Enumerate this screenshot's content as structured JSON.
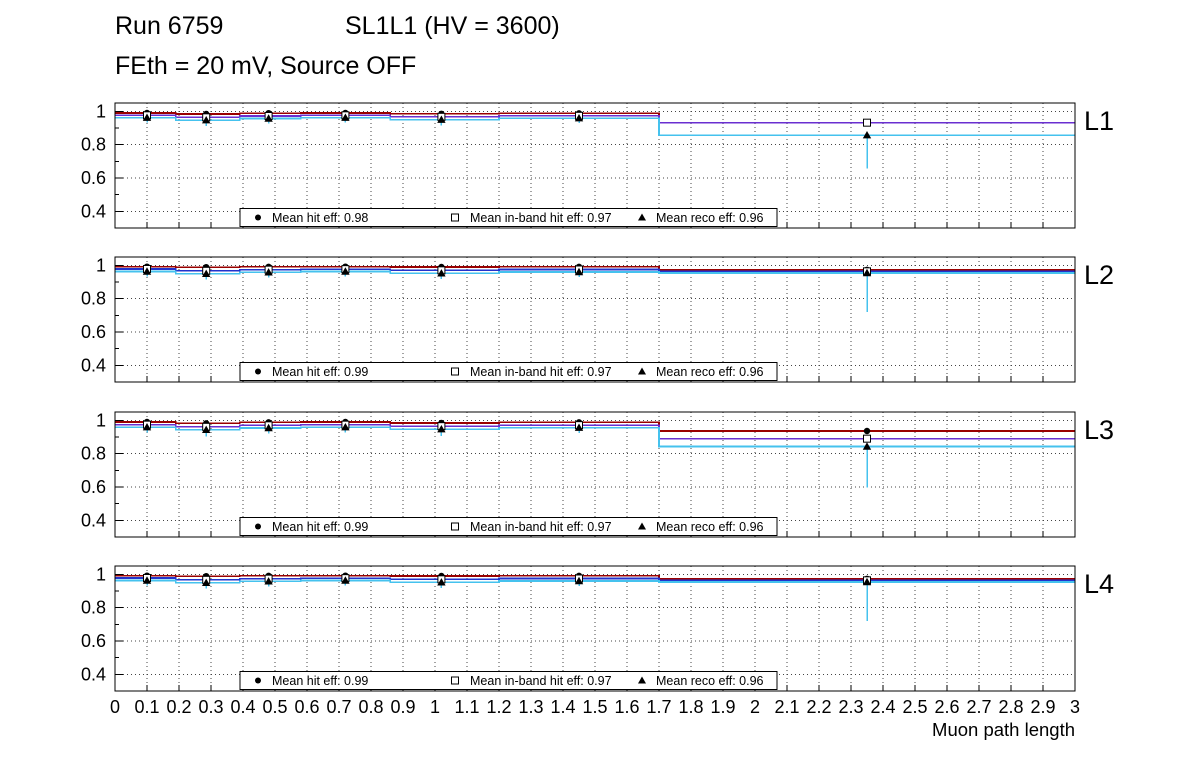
{
  "header": {
    "run": "Run 6759",
    "chamber": "SL1L1 (HV = 3600)",
    "conditions": "FEth = 20 mV, Source OFF"
  },
  "chart_data": {
    "type": "line",
    "xlabel": "Muon path length",
    "xlim": [
      0,
      3
    ],
    "ylim": [
      0.3,
      1.05
    ],
    "grid": true,
    "grid_color": "#444444",
    "ytick_values": [
      1,
      0.8,
      0.6,
      0.4
    ],
    "ytick_labels": [
      "1",
      "0.8",
      "0.6",
      "0.4"
    ],
    "ytick_minor": [
      0.9,
      0.7,
      0.5
    ],
    "xtick_labels": [
      "0",
      "0.1",
      "0.2",
      "0.3",
      "0.4",
      "0.5",
      "0.6",
      "0.7",
      "0.8",
      "0.9",
      "1",
      "1.1",
      "1.2",
      "1.3",
      "1.4",
      "1.5",
      "1.6",
      "1.7",
      "1.8",
      "1.9",
      "2",
      "2.1",
      "2.2",
      "2.3",
      "2.4",
      "2.5",
      "2.6",
      "2.7",
      "2.8",
      "2.9",
      "3"
    ],
    "bin_edges": [
      0,
      0.19,
      0.39,
      0.58,
      0.86,
      1.2,
      1.7,
      3
    ],
    "marker_x": [
      0.1,
      0.285,
      0.48,
      0.72,
      1.02,
      1.45,
      2.35
    ],
    "marker_black_err": 0.012,
    "reco_err_high": 0.008,
    "marker_color": "#000000",
    "panels": [
      {
        "label": "L1",
        "legend": [
          {
            "marker": "circle",
            "label": "Mean hit  eff: 0.98"
          },
          {
            "marker": "square",
            "label": "Mean in-band hit eff: 0.97"
          },
          {
            "marker": "triangle",
            "label": "Mean reco eff: 0.96"
          }
        ],
        "series": [
          {
            "key": "hit",
            "name": "Mean hit eff",
            "color": "#990000",
            "values": [
              0.99,
              0.984,
              0.989,
              0.99,
              0.985,
              0.988,
              0.932
            ]
          },
          {
            "key": "inband",
            "name": "Mean in-band hit eff",
            "color": "#6a2fd0",
            "values": [
              0.976,
              0.964,
              0.972,
              0.976,
              0.967,
              0.973,
              0.932
            ]
          },
          {
            "key": "reco",
            "name": "Mean reco eff",
            "color": "#45c2ee",
            "values": [
              0.962,
              0.947,
              0.957,
              0.962,
              0.95,
              0.959,
              0.857
            ]
          }
        ],
        "reco_err_low": [
          0.03,
          0.035,
          0.03,
          0.03,
          0.035,
          0.03,
          0.2
        ]
      },
      {
        "label": "L2",
        "legend": [
          {
            "marker": "circle",
            "label": "Mean hit  eff: 0.99"
          },
          {
            "marker": "square",
            "label": "Mean in-band hit eff: 0.97"
          },
          {
            "marker": "triangle",
            "label": "Mean reco eff: 0.96"
          }
        ],
        "series": [
          {
            "key": "hit",
            "name": "Mean hit eff",
            "color": "#990000",
            "values": [
              0.992,
              0.989,
              0.991,
              0.992,
              0.99,
              0.991,
              0.973
            ]
          },
          {
            "key": "inband",
            "name": "Mean in-band hit eff",
            "color": "#2233cc",
            "values": [
              0.978,
              0.967,
              0.974,
              0.977,
              0.97,
              0.975,
              0.964
            ]
          },
          {
            "key": "reco",
            "name": "Mean reco eff",
            "color": "#45c2ee",
            "values": [
              0.963,
              0.949,
              0.958,
              0.963,
              0.952,
              0.96,
              0.954
            ]
          }
        ],
        "reco_err_low": [
          0.03,
          0.035,
          0.03,
          0.03,
          0.035,
          0.03,
          0.235
        ]
      },
      {
        "label": "L3",
        "legend": [
          {
            "marker": "circle",
            "label": "Mean hit  eff: 0.99"
          },
          {
            "marker": "square",
            "label": "Mean in-band hit eff: 0.97"
          },
          {
            "marker": "triangle",
            "label": "Mean reco eff: 0.96"
          }
        ],
        "series": [
          {
            "key": "hit",
            "name": "Mean hit eff",
            "color": "#990000",
            "values": [
              0.99,
              0.982,
              0.988,
              0.99,
              0.984,
              0.988,
              0.936
            ]
          },
          {
            "key": "inband",
            "name": "Mean in-band hit eff",
            "color": "#6a2fd0",
            "values": [
              0.974,
              0.961,
              0.97,
              0.974,
              0.965,
              0.971,
              0.89
            ]
          },
          {
            "key": "reco",
            "name": "Mean reco eff",
            "color": "#45c2ee",
            "values": [
              0.959,
              0.943,
              0.954,
              0.959,
              0.947,
              0.956,
              0.843
            ]
          }
        ],
        "reco_err_low": [
          0.032,
          0.04,
          0.032,
          0.032,
          0.04,
          0.032,
          0.245
        ]
      },
      {
        "label": "L4",
        "legend": [
          {
            "marker": "circle",
            "label": "Mean hit  eff: 0.99"
          },
          {
            "marker": "square",
            "label": "Mean in-band hit eff: 0.97"
          },
          {
            "marker": "triangle",
            "label": "Mean reco eff: 0.96"
          }
        ],
        "series": [
          {
            "key": "hit",
            "name": "Mean hit eff",
            "color": "#990000",
            "values": [
              0.992,
              0.989,
              0.991,
              0.992,
              0.99,
              0.991,
              0.973
            ]
          },
          {
            "key": "inband",
            "name": "Mean in-band hit eff",
            "color": "#2233cc",
            "values": [
              0.978,
              0.967,
              0.974,
              0.977,
              0.97,
              0.975,
              0.964
            ]
          },
          {
            "key": "reco",
            "name": "Mean reco eff",
            "color": "#45c2ee",
            "values": [
              0.963,
              0.949,
              0.958,
              0.963,
              0.952,
              0.96,
              0.954
            ]
          }
        ],
        "reco_err_low": [
          0.03,
          0.035,
          0.03,
          0.03,
          0.035,
          0.03,
          0.235
        ]
      }
    ]
  }
}
